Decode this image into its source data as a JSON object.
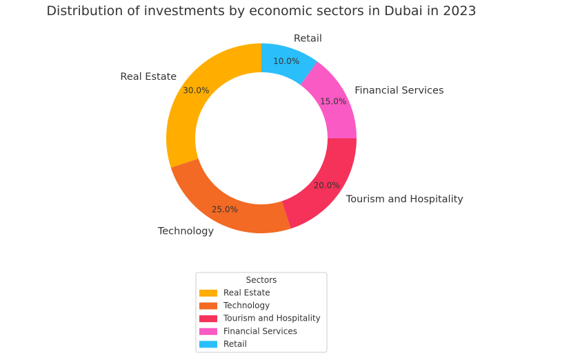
{
  "chart_data": {
    "type": "pie",
    "style": "donut",
    "title": "Distribution of investments by economic sectors in Dubai in 2023",
    "categories": [
      "Real Estate",
      "Technology",
      "Tourism and Hospitality",
      "Financial Services",
      "Retail"
    ],
    "values": [
      30.0,
      25.0,
      20.0,
      15.0,
      10.0
    ],
    "value_labels": [
      "30.0%",
      "25.0%",
      "20.0%",
      "15.0%",
      "10.0%"
    ],
    "colors": [
      "#FFAE00",
      "#F26A24",
      "#F5325A",
      "#FA5AC4",
      "#2ABEFA"
    ],
    "legend": {
      "title": "Sectors",
      "placement": "bottom-center",
      "entries": [
        "Real Estate",
        "Technology",
        "Tourism and Hospitality",
        "Financial Services",
        "Retail"
      ]
    }
  }
}
